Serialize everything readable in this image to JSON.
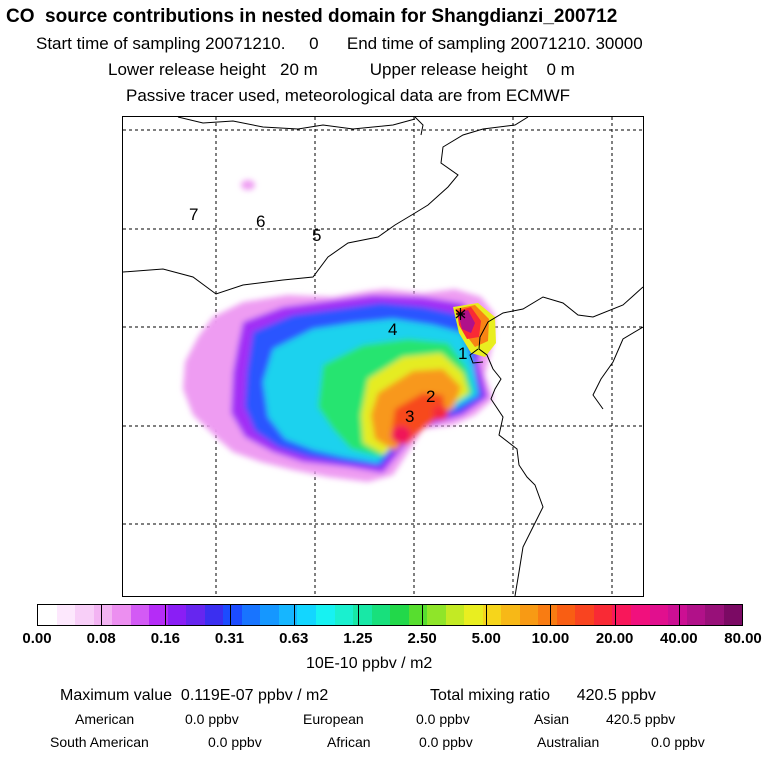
{
  "header": {
    "title": "CO  source contributions in nested domain for Shangdianzi_200712",
    "line2": "Start time of sampling 20071210.     0      End time of sampling 20071210. 30000",
    "line3": "Lower release height   20 m           Upper release height    0 m",
    "line4": "Passive tracer used, meteorological data are from ECMWF"
  },
  "map": {
    "region_labels": [
      "1",
      "2",
      "3",
      "4",
      "5",
      "6",
      "7"
    ]
  },
  "colorbar": {
    "colors": [
      "#ffffff",
      "#fde8fd",
      "#f8cff8",
      "#f3b4f3",
      "#ec8ff0",
      "#d35af5",
      "#b52cf7",
      "#8a1ef5",
      "#6626ef",
      "#3b2ff0",
      "#1c4cff",
      "#1874ff",
      "#1597ff",
      "#16b6ff",
      "#13d6ff",
      "#17f2f2",
      "#1af0cf",
      "#18e8a6",
      "#18e07c",
      "#22d84a",
      "#57de2f",
      "#8fe529",
      "#c3ea24",
      "#e9ee20",
      "#f6d51b",
      "#f7b817",
      "#f89a14",
      "#f97c12",
      "#f95e13",
      "#f94420",
      "#f92a35",
      "#f8175a",
      "#f1107d",
      "#e10f8e",
      "#cc0f93",
      "#b11189",
      "#981079",
      "#7b0a64"
    ],
    "tick_labels": [
      "0.00",
      "0.08",
      "0.16",
      "0.31",
      "0.63",
      "1.25",
      "2.50",
      "5.00",
      "10.00",
      "20.00",
      "40.00",
      "80.00"
    ],
    "unit": "10E-10 ppbv / m2"
  },
  "stats": {
    "max": "Maximum value  0.119E-07 ppbv / m2",
    "total": "Total mixing ratio      420.5 ppbv",
    "row1": [
      {
        "label": "American",
        "value": "0.0 ppbv"
      },
      {
        "label": "European",
        "value": "0.0 ppbv"
      },
      {
        "label": "Asian",
        "value": "420.5 ppbv"
      }
    ],
    "row2": [
      {
        "label": "South American",
        "value": "0.0 ppbv"
      },
      {
        "label": "African",
        "value": "0.0 ppbv"
      },
      {
        "label": "Australian",
        "value": "0.0 ppbv"
      }
    ]
  }
}
